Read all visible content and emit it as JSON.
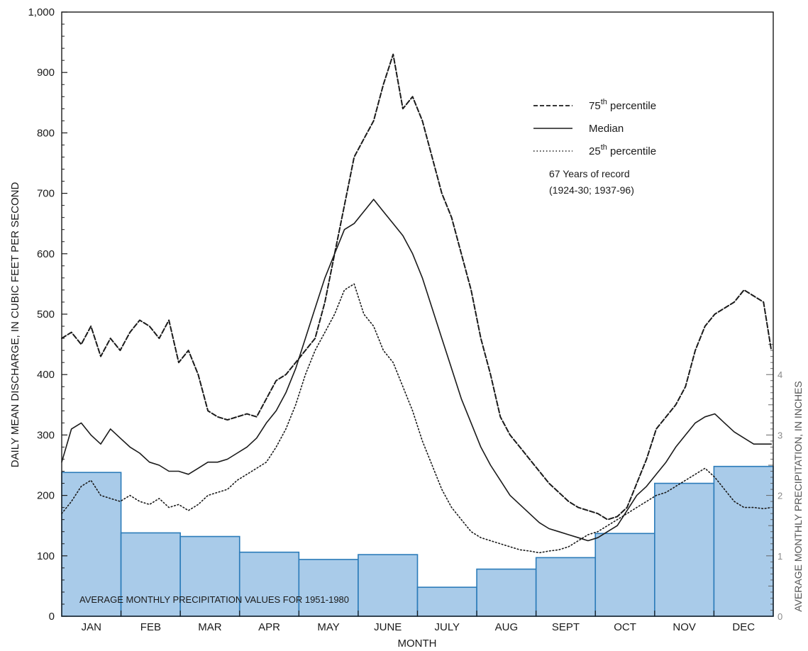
{
  "chart_data": {
    "type": "line",
    "xlabel": "MONTH",
    "ylabel": "DAILY MEAN DISCHARGE, IN CUBIC FEET PER SECOND",
    "ylim": [
      0,
      1000
    ],
    "y_ticks": [
      "0",
      "100",
      "200",
      "300",
      "400",
      "500",
      "600",
      "700",
      "800",
      "900",
      "1,000"
    ],
    "categories": [
      "JAN",
      "FEB",
      "MAR",
      "APR",
      "MAY",
      "JUNE",
      "JULY",
      "AUG",
      "SEPT",
      "OCT",
      "NOV",
      "DEC"
    ],
    "x_domain_days": [
      0,
      365
    ],
    "series": [
      {
        "name": "75th percentile",
        "style": "dashed",
        "x": [
          0,
          5,
          10,
          15,
          20,
          25,
          30,
          35,
          40,
          45,
          50,
          55,
          60,
          65,
          70,
          75,
          80,
          85,
          90,
          95,
          100,
          105,
          110,
          115,
          120,
          125,
          130,
          135,
          140,
          145,
          150,
          155,
          160,
          165,
          170,
          175,
          180,
          185,
          190,
          195,
          200,
          205,
          210,
          215,
          220,
          225,
          230,
          235,
          240,
          245,
          250,
          255,
          260,
          265,
          270,
          275,
          280,
          285,
          290,
          295,
          300,
          305,
          310,
          315,
          320,
          325,
          330,
          335,
          340,
          345,
          350,
          355,
          360,
          364
        ],
        "y": [
          460,
          470,
          450,
          480,
          430,
          460,
          440,
          470,
          490,
          480,
          460,
          490,
          420,
          440,
          400,
          340,
          330,
          325,
          330,
          335,
          330,
          360,
          390,
          400,
          420,
          440,
          460,
          520,
          600,
          680,
          760,
          790,
          820,
          880,
          930,
          840,
          860,
          820,
          760,
          700,
          660,
          600,
          540,
          460,
          400,
          330,
          300,
          280,
          260,
          240,
          220,
          205,
          190,
          180,
          175,
          170,
          160,
          165,
          180,
          220,
          260,
          310,
          330,
          350,
          380,
          440,
          480,
          500,
          510,
          520,
          540,
          530,
          520,
          440
        ]
      },
      {
        "name": "Median",
        "style": "solid",
        "x": [
          0,
          5,
          10,
          15,
          20,
          25,
          30,
          35,
          40,
          45,
          50,
          55,
          60,
          65,
          70,
          75,
          80,
          85,
          90,
          95,
          100,
          105,
          110,
          115,
          120,
          125,
          130,
          135,
          140,
          145,
          150,
          155,
          160,
          165,
          170,
          175,
          180,
          185,
          190,
          195,
          200,
          205,
          210,
          215,
          220,
          225,
          230,
          235,
          240,
          245,
          250,
          255,
          260,
          265,
          270,
          275,
          280,
          285,
          290,
          295,
          300,
          305,
          310,
          315,
          320,
          325,
          330,
          335,
          340,
          345,
          350,
          355,
          360,
          364
        ],
        "y": [
          255,
          310,
          320,
          300,
          285,
          310,
          295,
          280,
          270,
          255,
          250,
          240,
          240,
          235,
          245,
          255,
          255,
          260,
          270,
          280,
          295,
          320,
          340,
          370,
          410,
          460,
          510,
          560,
          600,
          640,
          650,
          670,
          690,
          670,
          650,
          630,
          600,
          560,
          510,
          460,
          410,
          360,
          320,
          280,
          250,
          225,
          200,
          185,
          170,
          155,
          145,
          140,
          135,
          130,
          125,
          130,
          140,
          150,
          175,
          200,
          215,
          235,
          255,
          280,
          300,
          320,
          330,
          335,
          320,
          305,
          295,
          285,
          285,
          285
        ]
      },
      {
        "name": "25th percentile",
        "style": "dotted",
        "x": [
          0,
          5,
          10,
          15,
          20,
          25,
          30,
          35,
          40,
          45,
          50,
          55,
          60,
          65,
          70,
          75,
          80,
          85,
          90,
          95,
          100,
          105,
          110,
          115,
          120,
          125,
          130,
          135,
          140,
          145,
          150,
          155,
          160,
          165,
          170,
          175,
          180,
          185,
          190,
          195,
          200,
          205,
          210,
          215,
          220,
          225,
          230,
          235,
          240,
          245,
          250,
          255,
          260,
          265,
          270,
          275,
          280,
          285,
          290,
          295,
          300,
          305,
          310,
          315,
          320,
          325,
          330,
          335,
          340,
          345,
          350,
          355,
          360,
          364
        ],
        "y": [
          170,
          190,
          215,
          225,
          200,
          195,
          190,
          200,
          190,
          185,
          195,
          180,
          185,
          175,
          185,
          200,
          205,
          210,
          225,
          235,
          245,
          255,
          280,
          310,
          350,
          400,
          440,
          470,
          500,
          540,
          550,
          500,
          480,
          440,
          420,
          380,
          340,
          290,
          250,
          210,
          180,
          160,
          140,
          130,
          125,
          120,
          115,
          110,
          108,
          105,
          108,
          110,
          115,
          125,
          135,
          140,
          150,
          160,
          170,
          180,
          190,
          200,
          205,
          215,
          225,
          235,
          245,
          230,
          210,
          190,
          180,
          180,
          178,
          180
        ]
      }
    ],
    "precipitation": {
      "label": "AVERAGE MONTHLY PRECIPITATION VALUES FOR 1951-1980",
      "axis_title": "AVERAGE MONTHLY PRECIPITATION, IN INCHES",
      "ylim": [
        0,
        10
      ],
      "y_ticks": [
        "0",
        "1",
        "2",
        "3",
        "4"
      ],
      "values": [
        2.38,
        1.38,
        1.32,
        1.06,
        0.94,
        1.02,
        0.48,
        0.78,
        0.97,
        1.37,
        2.2,
        2.48
      ],
      "bar_color": "#a9cbe9",
      "edge_color": "#2b7bb9"
    },
    "legend": {
      "p75": "75",
      "p75_sup": "th",
      "p75_suffix": " percentile",
      "median": "Median",
      "p25": "25",
      "p25_sup": "th",
      "p25_suffix": " percentile",
      "note_line1": "67 Years of record",
      "note_line2": "(1924-30; 1937-96)",
      "placement": "top-right"
    },
    "grid": false
  }
}
